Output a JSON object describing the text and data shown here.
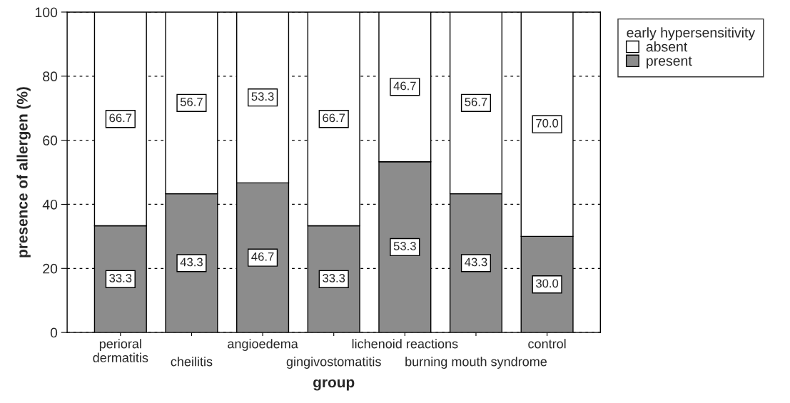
{
  "chart_data": {
    "type": "bar",
    "stacked": true,
    "xlabel": "group",
    "ylabel": "presence of allergen (%)",
    "legend_title": "early hypersensitivity",
    "categories": [
      "perioral\ndermatitis",
      "cheilitis",
      "angioedema",
      "gingivostomatitis",
      "lichenoid reactions",
      "burning mouth syndrome",
      "control"
    ],
    "series": [
      {
        "name": "present",
        "color": "#8c8c8c",
        "values": [
          33.3,
          43.3,
          46.7,
          33.3,
          53.3,
          43.3,
          30.0
        ],
        "value_labels": [
          "33.3",
          "43.3",
          "46.7",
          "33.3",
          "53.3",
          "43.3",
          "30.0"
        ]
      },
      {
        "name": "absent",
        "color": "#ffffff",
        "values": [
          66.7,
          56.7,
          53.3,
          66.7,
          46.7,
          56.7,
          70.0
        ],
        "value_labels": [
          "66.7",
          "56.7",
          "53.3",
          "66.7",
          "46.7",
          "56.7",
          "70.0"
        ]
      }
    ],
    "ylim": [
      0,
      100
    ],
    "yticks": [
      0,
      20,
      40,
      60,
      80,
      100
    ],
    "grid": "y",
    "legend": "top right"
  }
}
